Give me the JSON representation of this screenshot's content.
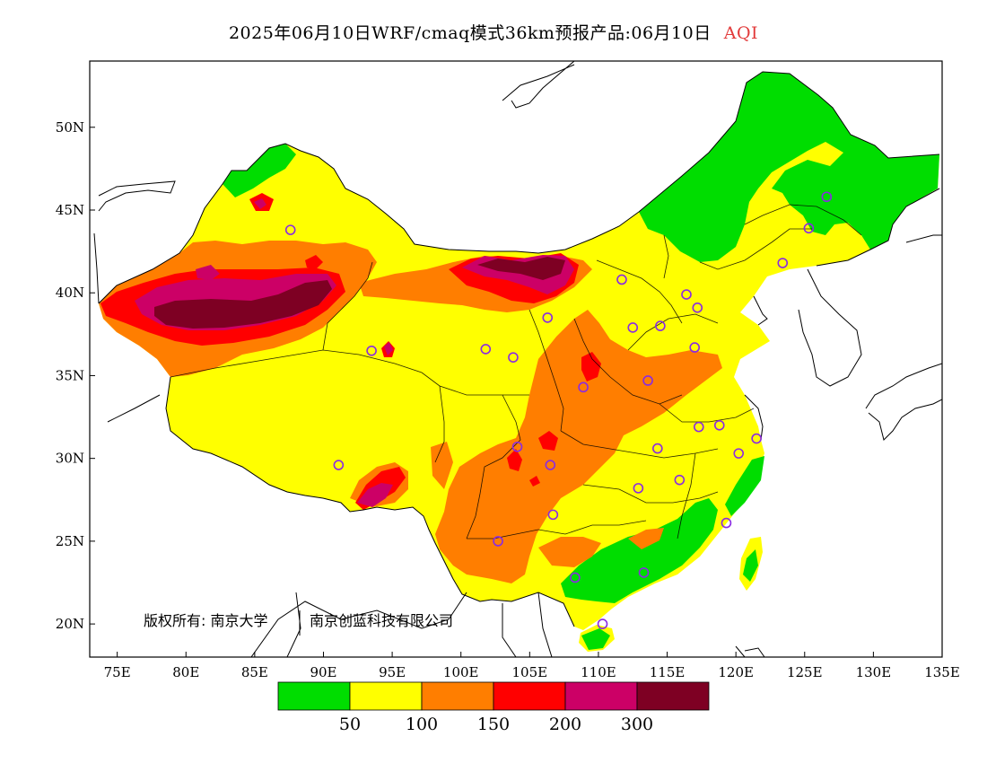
{
  "title": {
    "text": "2025年06月10日WRF/cmaq模式36km预报产品:06月10日",
    "variable": "AQI",
    "variable_color": "#e23a3a"
  },
  "map": {
    "region": "China",
    "lon_range": [
      73,
      135
    ],
    "lat_range": [
      18,
      54
    ],
    "x_ticks": [
      75,
      80,
      85,
      90,
      95,
      100,
      105,
      110,
      115,
      120,
      125,
      130,
      135
    ],
    "x_tick_labels": [
      "75E",
      "80E",
      "85E",
      "90E",
      "95E",
      "100E",
      "105E",
      "110E",
      "115E",
      "120E",
      "125E",
      "130E",
      "135E"
    ],
    "y_ticks": [
      20,
      25,
      30,
      35,
      40,
      45,
      50
    ],
    "y_tick_labels": [
      "20N",
      "25N",
      "30N",
      "35N",
      "40N",
      "45N",
      "50N"
    ],
    "copyright_parts": [
      "版权所有: 南京大学",
      "南京创蓝科技有限公司"
    ]
  },
  "legend": {
    "colors": [
      "#00dd00",
      "#ffff00",
      "#ff7e00",
      "#ff0000",
      "#cc0066",
      "#7e0023"
    ],
    "levels": [
      "50",
      "100",
      "150",
      "200",
      "300"
    ]
  },
  "stations": [
    [
      87.6,
      43.8
    ],
    [
      91.1,
      29.6
    ],
    [
      93.5,
      36.5
    ],
    [
      101.8,
      36.6
    ],
    [
      103.8,
      36.1
    ],
    [
      106.3,
      38.5
    ],
    [
      111.7,
      40.8
    ],
    [
      116.4,
      39.9
    ],
    [
      117.2,
      39.1
    ],
    [
      114.5,
      38.0
    ],
    [
      112.5,
      37.9
    ],
    [
      108.9,
      34.3
    ],
    [
      113.6,
      34.7
    ],
    [
      117.0,
      36.7
    ],
    [
      104.1,
      30.7
    ],
    [
      106.5,
      29.6
    ],
    [
      106.7,
      26.6
    ],
    [
      102.7,
      25.0
    ],
    [
      108.3,
      22.8
    ],
    [
      113.3,
      23.1
    ],
    [
      110.3,
      20.0
    ],
    [
      112.9,
      28.2
    ],
    [
      114.3,
      30.6
    ],
    [
      115.9,
      28.7
    ],
    [
      117.3,
      31.9
    ],
    [
      118.8,
      32.0
    ],
    [
      120.2,
      30.3
    ],
    [
      121.5,
      31.2
    ],
    [
      119.3,
      26.1
    ],
    [
      126.6,
      45.8
    ],
    [
      125.3,
      43.9
    ],
    [
      123.4,
      41.8
    ]
  ]
}
